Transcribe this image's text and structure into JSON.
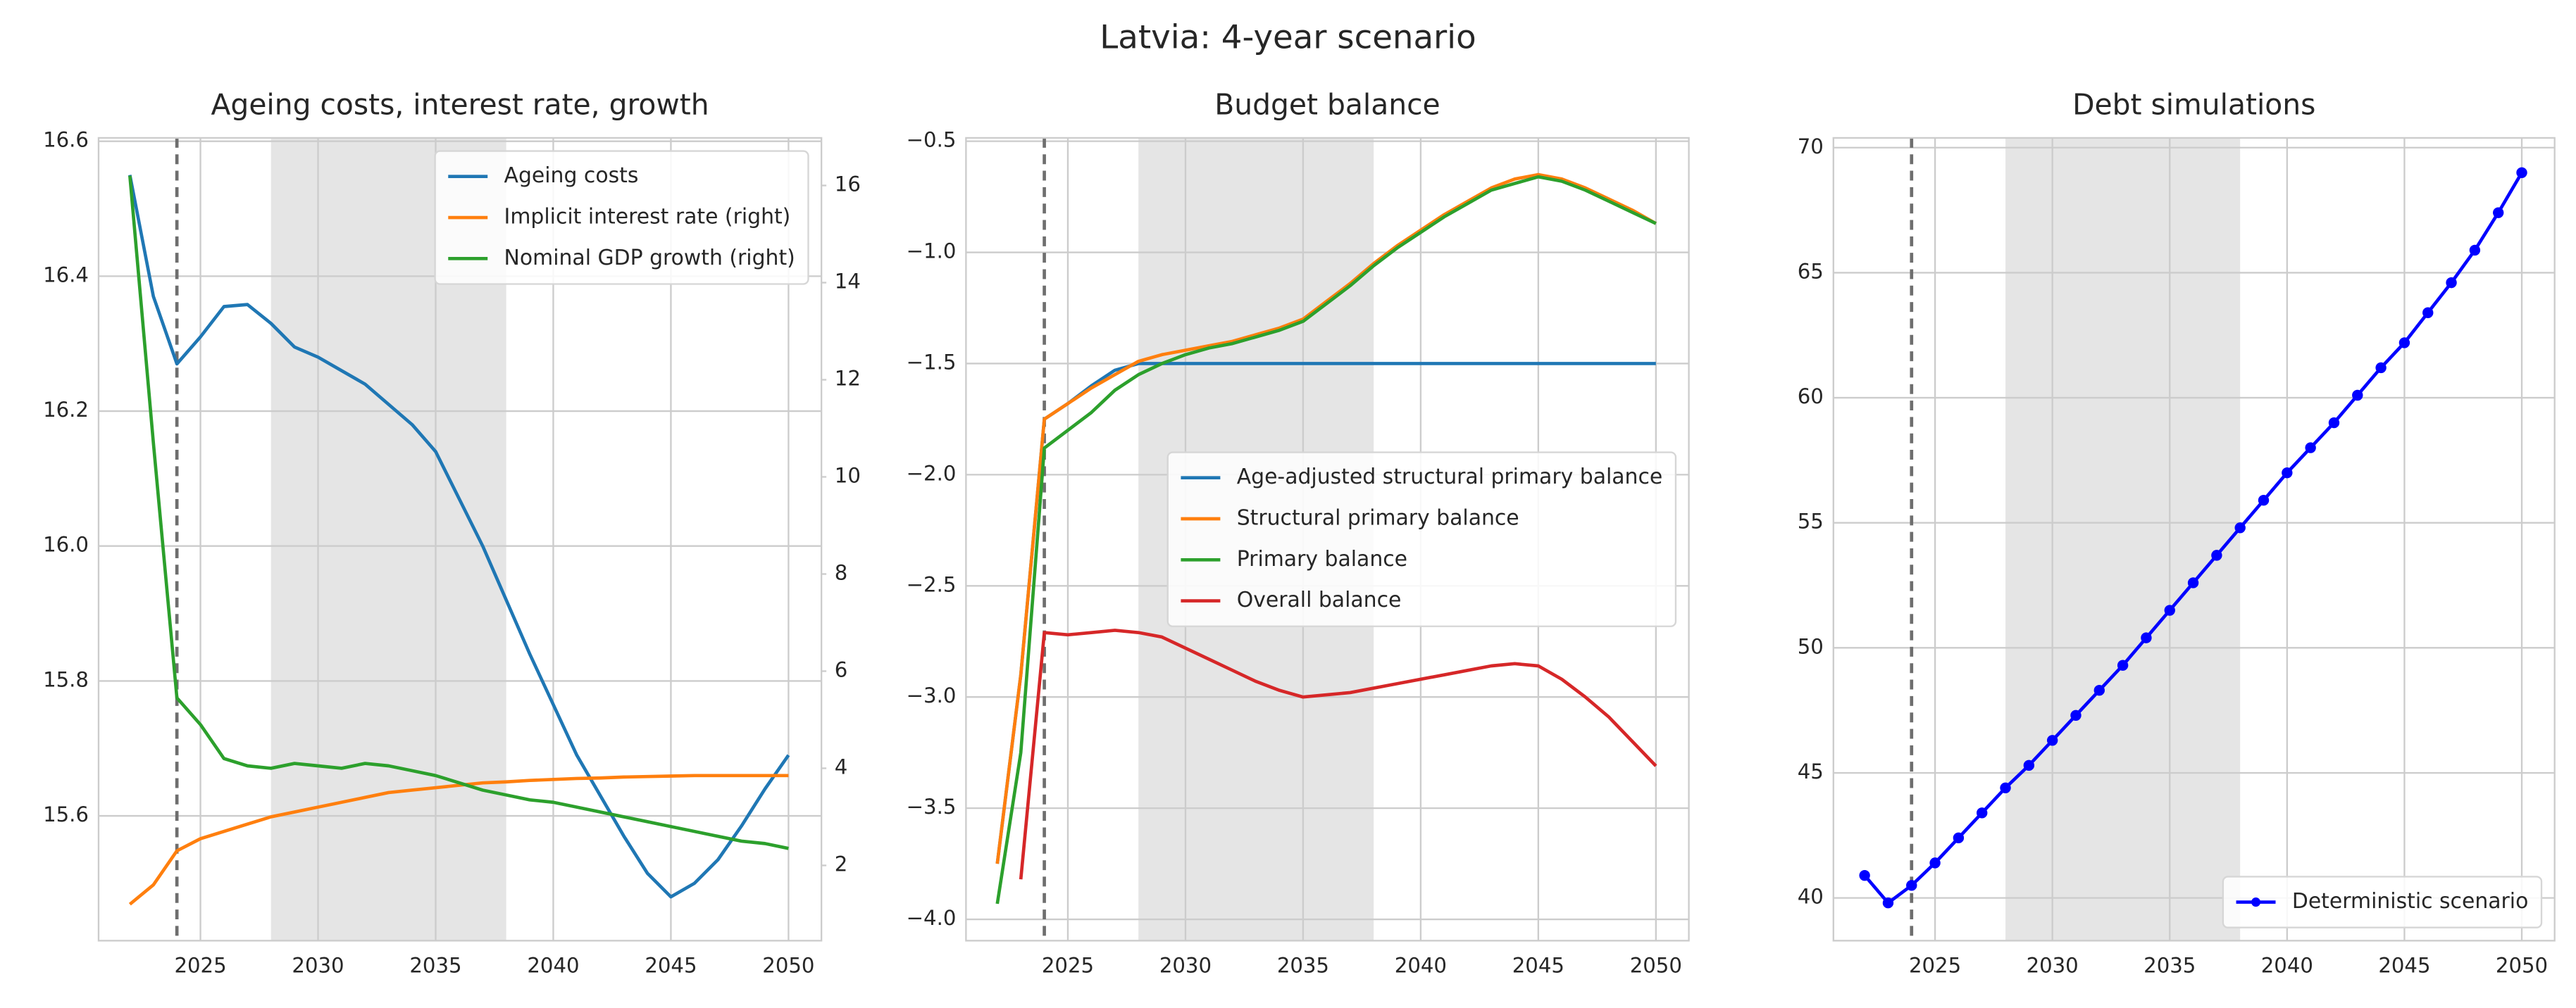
{
  "title": "Latvia: 4-year scenario",
  "chart_data": [
    {
      "type": "line",
      "title": "Ageing costs, interest rate, growth",
      "x": [
        2022,
        2023,
        2024,
        2025,
        2026,
        2027,
        2028,
        2029,
        2030,
        2031,
        2032,
        2033,
        2034,
        2035,
        2036,
        2037,
        2038,
        2039,
        2040,
        2041,
        2042,
        2043,
        2044,
        2045,
        2046,
        2047,
        2048,
        2049,
        2050
      ],
      "series": [
        {
          "name": "Ageing costs",
          "color": "#1f77b4",
          "values": [
            16.55,
            16.37,
            16.27,
            16.31,
            16.355,
            16.358,
            16.33,
            16.295,
            16.28,
            16.26,
            16.24,
            16.21,
            16.18,
            16.14,
            16.07,
            16.0,
            15.92,
            15.84,
            15.765,
            15.69,
            15.63,
            15.57,
            15.515,
            15.48,
            15.5,
            15.535,
            15.585,
            15.64,
            15.69
          ]
        },
        {
          "name": "Implicit interest rate (right)",
          "color": "#ff7f0e",
          "axis": "y2",
          "values": [
            1.2,
            1.6,
            2.3,
            2.55,
            2.7,
            2.85,
            3.0,
            3.1,
            3.2,
            3.3,
            3.4,
            3.5,
            3.55,
            3.6,
            3.65,
            3.7,
            3.72,
            3.75,
            3.77,
            3.79,
            3.8,
            3.82,
            3.83,
            3.84,
            3.85,
            3.85,
            3.85,
            3.85,
            3.85
          ]
        },
        {
          "name": "Nominal GDP growth (right)",
          "color": "#2ca02c",
          "axis": "y2",
          "values": [
            16.2,
            10.7,
            5.45,
            4.9,
            4.2,
            4.05,
            4.0,
            4.1,
            4.05,
            4.0,
            4.1,
            4.05,
            3.95,
            3.85,
            3.7,
            3.55,
            3.45,
            3.35,
            3.3,
            3.2,
            3.1,
            3.0,
            2.9,
            2.8,
            2.7,
            2.6,
            2.5,
            2.45,
            2.35
          ]
        }
      ],
      "xlim": [
        2020.67,
        2051.4
      ],
      "xticks": [
        2025,
        2030,
        2035,
        2040,
        2045,
        2050
      ],
      "ylim": [
        15.415,
        16.605
      ],
      "yticks": [
        15.6,
        15.8,
        {
          "value": 16.0,
          "label": "16.0"
        },
        16.2,
        16.4,
        16.6
      ],
      "y2lim": [
        0.45,
        16.98
      ],
      "y2ticks": [
        2,
        4,
        6,
        8,
        10,
        12,
        14,
        16
      ],
      "vline": 2024,
      "shaded_span": [
        2028,
        2038
      ],
      "grid": true,
      "legend": "upper right"
    },
    {
      "type": "line",
      "title": "Budget balance",
      "x": [
        2022,
        2023,
        2024,
        2025,
        2026,
        2027,
        2028,
        2029,
        2030,
        2031,
        2032,
        2033,
        2034,
        2035,
        2036,
        2037,
        2038,
        2039,
        2040,
        2041,
        2042,
        2043,
        2044,
        2045,
        2046,
        2047,
        2048,
        2049,
        2050
      ],
      "series": [
        {
          "name": "Age-adjusted structural primary balance",
          "color": "#1f77b4",
          "values": [
            -3.75,
            -2.9,
            -1.75,
            -1.68,
            -1.6,
            -1.53,
            -1.5,
            -1.5,
            -1.5,
            -1.5,
            -1.5,
            -1.5,
            -1.5,
            -1.5,
            -1.5,
            -1.5,
            -1.5,
            -1.5,
            -1.5,
            -1.5,
            -1.5,
            -1.5,
            -1.5,
            -1.5,
            -1.5,
            -1.5,
            -1.5,
            -1.5,
            -1.5
          ]
        },
        {
          "name": "Structural primary balance",
          "color": "#ff7f0e",
          "values": [
            -3.75,
            -2.9,
            -1.75,
            -1.68,
            -1.61,
            -1.55,
            -1.49,
            -1.46,
            -1.44,
            -1.42,
            -1.4,
            -1.37,
            -1.34,
            -1.3,
            -1.22,
            -1.14,
            -1.05,
            -0.97,
            -0.9,
            -0.83,
            -0.77,
            -0.71,
            -0.67,
            -0.65,
            -0.67,
            -0.71,
            -0.76,
            -0.81,
            -0.87
          ]
        },
        {
          "name": "Primary balance",
          "color": "#2ca02c",
          "values": [
            -3.93,
            -3.25,
            -1.88,
            -1.8,
            -1.72,
            -1.62,
            -1.55,
            -1.5,
            -1.46,
            -1.43,
            -1.41,
            -1.38,
            -1.35,
            -1.31,
            -1.23,
            -1.15,
            -1.06,
            -0.98,
            -0.91,
            -0.84,
            -0.78,
            -0.72,
            -0.69,
            -0.66,
            -0.68,
            -0.72,
            -0.77,
            -0.82,
            -0.87
          ]
        },
        {
          "name": "Overall balance",
          "color": "#d62728",
          "values": [
            null,
            -3.82,
            -2.71,
            -2.72,
            -2.71,
            -2.7,
            -2.71,
            -2.73,
            -2.78,
            -2.83,
            -2.88,
            -2.93,
            -2.97,
            -3.0,
            -2.99,
            -2.98,
            -2.96,
            -2.94,
            -2.92,
            -2.9,
            -2.88,
            -2.86,
            -2.85,
            -2.86,
            -2.92,
            -3.0,
            -3.09,
            -3.2,
            -3.31
          ]
        }
      ],
      "xlim": [
        2020.67,
        2051.4
      ],
      "xticks": [
        2025,
        2030,
        2035,
        2040,
        2045,
        2050
      ],
      "ylim": [
        -4.096,
        -0.485
      ],
      "yticks": [
        {
          "value": -4.0,
          "label": "−4.0"
        },
        {
          "value": -3.5,
          "label": "−3.5"
        },
        {
          "value": -3.0,
          "label": "−3.0"
        },
        {
          "value": -2.5,
          "label": "−2.5"
        },
        {
          "value": -2.0,
          "label": "−2.0"
        },
        {
          "value": -1.5,
          "label": "−1.5"
        },
        {
          "value": -1.0,
          "label": "−1.0"
        },
        {
          "value": -0.5,
          "label": "−0.5"
        }
      ],
      "vline": 2024,
      "shaded_span": [
        2028,
        2038
      ],
      "grid": true,
      "legend": "center right"
    },
    {
      "type": "line",
      "title": "Debt simulations",
      "x": [
        2022,
        2023,
        2024,
        2025,
        2026,
        2027,
        2028,
        2029,
        2030,
        2031,
        2032,
        2033,
        2034,
        2035,
        2036,
        2037,
        2038,
        2039,
        2040,
        2041,
        2042,
        2043,
        2044,
        2045,
        2046,
        2047,
        2048,
        2049,
        2050
      ],
      "series": [
        {
          "name": "Deterministic scenario",
          "color": "#0000ff",
          "marker": "o",
          "values": [
            40.9,
            39.8,
            40.5,
            41.4,
            42.4,
            43.4,
            44.4,
            45.3,
            46.3,
            47.3,
            48.3,
            49.3,
            50.4,
            51.5,
            52.6,
            53.7,
            54.8,
            55.9,
            57.0,
            58.0,
            59.0,
            60.1,
            61.2,
            62.2,
            63.4,
            64.6,
            65.9,
            67.4,
            69.0
          ]
        }
      ],
      "xlim": [
        2020.67,
        2051.4
      ],
      "xticks": [
        2025,
        2030,
        2035,
        2040,
        2045,
        2050
      ],
      "ylim": [
        38.29,
        70.39
      ],
      "yticks": [
        40,
        45,
        50,
        55,
        60,
        65,
        70
      ],
      "vline": 2024,
      "shaded_span": [
        2028,
        2038
      ],
      "grid": true,
      "legend": "lower right"
    }
  ]
}
